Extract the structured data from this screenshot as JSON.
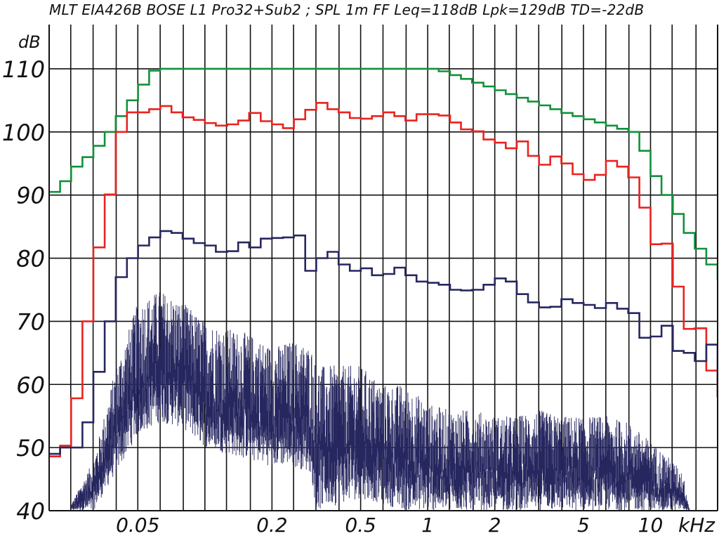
{
  "title": "MLT EIA426B BOSE L1 Pro32+Sub2 ; SPL 1m FF Leq=118dB Lpk=129dB TD=-22dB",
  "chart_data": {
    "type": "line",
    "title": "MLT EIA426B BOSE L1 Pro32+Sub2 ; SPL 1m FF Leq=118dB Lpk=129dB TD=-22dB",
    "ylabel": "dB",
    "x_unit": "kHz",
    "x_scale": "log",
    "xlim": [
      0.02,
      20
    ],
    "ylim": [
      40,
      117
    ],
    "x_ticks": [
      {
        "value": 0.05,
        "label": "0.05"
      },
      {
        "value": 0.2,
        "label": "0.2"
      },
      {
        "value": 0.5,
        "label": "0.5"
      },
      {
        "value": 1,
        "label": "1"
      },
      {
        "value": 2,
        "label": "2"
      },
      {
        "value": 5,
        "label": "5"
      },
      {
        "value": 10,
        "label": "10"
      }
    ],
    "x_unit_label": "kHz",
    "y_ticks": [
      {
        "value": 40,
        "label": "40"
      },
      {
        "value": 50,
        "label": "50"
      },
      {
        "value": 60,
        "label": "60"
      },
      {
        "value": 70,
        "label": "70"
      },
      {
        "value": 80,
        "label": "80"
      },
      {
        "value": 90,
        "label": "90"
      },
      {
        "value": 100,
        "label": "100"
      },
      {
        "value": 110,
        "label": "110"
      }
    ],
    "grid_x": [
      0.025,
      0.0315,
      0.04,
      0.05,
      0.063,
      0.08,
      0.1,
      0.125,
      0.16,
      0.2,
      0.25,
      0.315,
      0.4,
      0.5,
      0.63,
      0.8,
      1,
      1.25,
      1.6,
      2,
      2.5,
      3.15,
      4,
      5,
      6.3,
      8,
      10,
      12.5,
      16
    ],
    "grid": true,
    "legend": "none",
    "series": [
      {
        "color": "#12913a",
        "style": "step",
        "x": [
          0.02,
          0.0224,
          0.0251,
          0.0282,
          0.0316,
          0.0355,
          0.0398,
          0.0447,
          0.0501,
          0.0562,
          0.063,
          0.1,
          0.2,
          0.5,
          1,
          1.12,
          1.26,
          1.41,
          1.58,
          1.78,
          2,
          2.24,
          2.51,
          2.82,
          3.16,
          3.55,
          3.98,
          4.47,
          5.01,
          5.62,
          6.31,
          7.08,
          7.94,
          8.91,
          10,
          11.2,
          12.6,
          14.1,
          15.8,
          17.8,
          20
        ],
        "y": [
          90.5,
          92.2,
          94.5,
          96.0,
          97.8,
          100.0,
          102.5,
          105.0,
          107.5,
          109.7,
          110,
          110,
          110,
          110,
          110,
          109.6,
          109.0,
          108.4,
          107.8,
          107.2,
          106.6,
          106.0,
          105.4,
          104.8,
          104.2,
          103.6,
          103.0,
          102.5,
          102.0,
          101.5,
          101.0,
          100.5,
          100.0,
          97.0,
          93.0,
          90.0,
          87.0,
          84.0,
          81.5,
          79.0,
          76.5
        ]
      },
      {
        "color": "#e8231f",
        "style": "step",
        "x": [
          0.02,
          0.0224,
          0.0251,
          0.0282,
          0.0316,
          0.0355,
          0.0398,
          0.0447,
          0.0501,
          0.0562,
          0.0631,
          0.0708,
          0.0794,
          0.0891,
          0.1,
          0.112,
          0.126,
          0.141,
          0.158,
          0.178,
          0.2,
          0.224,
          0.251,
          0.282,
          0.316,
          0.355,
          0.398,
          0.447,
          0.501,
          0.562,
          0.631,
          0.708,
          0.794,
          0.891,
          1,
          1.12,
          1.26,
          1.41,
          1.58,
          1.78,
          2,
          2.24,
          2.51,
          2.82,
          3.16,
          3.55,
          3.98,
          4.47,
          5.01,
          5.62,
          6.31,
          7.08,
          7.94,
          8.91,
          10,
          11.2,
          12.6,
          14.1,
          15.8,
          17.8,
          20
        ],
        "y": [
          48.6,
          50.3,
          57.8,
          70.0,
          81.7,
          90.1,
          100.0,
          103.1,
          103.1,
          103.6,
          104.1,
          103.1,
          102.3,
          101.9,
          101.4,
          101.0,
          101.2,
          101.8,
          103.0,
          101.7,
          101.2,
          100.6,
          102.0,
          103.5,
          104.6,
          103.6,
          103.1,
          102.2,
          102.1,
          102.5,
          103.1,
          102.5,
          101.8,
          102.8,
          102.8,
          102.6,
          101.5,
          100.4,
          100.1,
          98.8,
          98.3,
          97.4,
          98.5,
          96.2,
          94.8,
          96.1,
          95.0,
          93.3,
          92.4,
          93.2,
          95.4,
          94.5,
          92.8,
          88.0,
          82.2,
          82.3,
          75.5,
          68.8,
          68.9,
          62.2,
          58.0
        ]
      },
      {
        "color": "#272760",
        "style": "step",
        "x": [
          0.02,
          0.0224,
          0.0251,
          0.0282,
          0.0316,
          0.0355,
          0.0398,
          0.0447,
          0.0501,
          0.0562,
          0.0631,
          0.0708,
          0.0794,
          0.0891,
          0.1,
          0.112,
          0.126,
          0.141,
          0.158,
          0.178,
          0.2,
          0.224,
          0.251,
          0.282,
          0.316,
          0.355,
          0.398,
          0.447,
          0.501,
          0.562,
          0.631,
          0.708,
          0.794,
          0.891,
          1,
          1.12,
          1.26,
          1.41,
          1.58,
          1.78,
          2,
          2.24,
          2.51,
          2.82,
          3.16,
          3.55,
          3.98,
          4.47,
          5.01,
          5.62,
          6.31,
          7.08,
          7.94,
          8.91,
          10,
          11.2,
          12.6,
          14.1,
          15.8,
          17.8,
          20
        ],
        "y": [
          49.0,
          50.0,
          50.0,
          54.0,
          62.0,
          70.0,
          77.0,
          80.0,
          82.0,
          83.3,
          84.3,
          84.0,
          83.1,
          82.4,
          82.0,
          81.0,
          81.1,
          82.5,
          81.7,
          83.1,
          83.2,
          83.3,
          83.6,
          78.0,
          80.0,
          81.0,
          79.0,
          78.0,
          78.4,
          77.3,
          77.5,
          78.5,
          77.3,
          76.3,
          76.1,
          75.8,
          75.0,
          74.9,
          75.0,
          75.8,
          76.8,
          76.3,
          74.3,
          73.0,
          72.2,
          72.3,
          73.5,
          72.9,
          72.6,
          72.1,
          72.9,
          72.0,
          71.3,
          67.4,
          67.6,
          69.3,
          65.3,
          65.0,
          63.7,
          66.3,
          58.0
        ]
      }
    ],
    "noise": {
      "color": "#272760",
      "baseline": 40,
      "envelope_x": [
        0.02,
        0.0251,
        0.0316,
        0.04,
        0.05,
        0.063,
        0.08,
        0.1,
        0.125,
        0.16,
        0.2,
        0.25,
        0.3,
        0.315,
        0.4,
        0.5,
        0.63,
        0.8,
        1,
        1.25,
        1.6,
        2,
        2.5,
        3.15,
        4,
        5,
        6.3,
        8,
        10,
        12.5,
        14,
        15
      ],
      "envelope_y": [
        40,
        41,
        48,
        63,
        73,
        75,
        73,
        70,
        69,
        68,
        66,
        67,
        66,
        63,
        63,
        63,
        60,
        60,
        57,
        56,
        56,
        55,
        55,
        56,
        55,
        55,
        55,
        54,
        51,
        48,
        46,
        40
      ],
      "floor_y": [
        40,
        40,
        40,
        46,
        52,
        54,
        53,
        50,
        49,
        48,
        47,
        47,
        46,
        40,
        41,
        42,
        41,
        40,
        40,
        40,
        40,
        40,
        40,
        40,
        40,
        40,
        40,
        40,
        40,
        40,
        40,
        40
      ]
    }
  }
}
